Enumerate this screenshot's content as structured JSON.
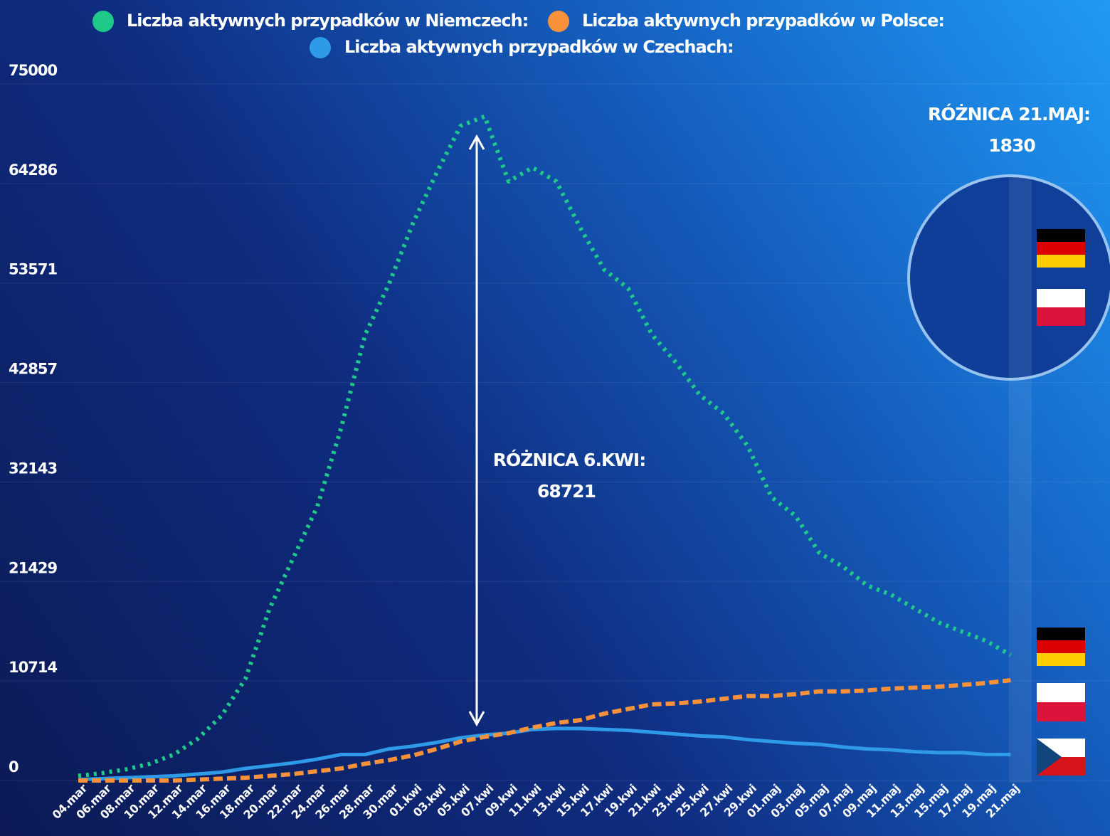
{
  "chart_data": {
    "type": "line",
    "categories": [
      "04.mar",
      "06.mar",
      "08.mar",
      "10.mar",
      "12.mar",
      "14.mar",
      "16.mar",
      "18.mar",
      "20.mar",
      "22.mar",
      "24.mar",
      "26.mar",
      "28.mar",
      "30.mar",
      "01.kwi",
      "03.kwi",
      "05.kwi",
      "07.kwi",
      "09.kwi",
      "11.kwi",
      "13.kwi",
      "15.kwi",
      "17.kwi",
      "19.kwi",
      "21.kwi",
      "23.kwi",
      "25.kwi",
      "27.kwi",
      "29.kwi",
      "01.maj",
      "03.maj",
      "05.maj",
      "07.maj",
      "09.maj",
      "11.maj",
      "13.maj",
      "15.maj",
      "17.maj",
      "19.maj",
      "21.maj"
    ],
    "series": [
      {
        "name": "Liczba aktywnych przypadków w Niemczech:",
        "color": "#1ec98a",
        "style": "dotted",
        "values": [
          500,
          800,
          1200,
          1800,
          2800,
          4500,
          7000,
          11000,
          18500,
          24000,
          29500,
          38000,
          48000,
          53500,
          60000,
          65500,
          70500,
          71500,
          64500,
          66000,
          64500,
          59500,
          55000,
          53000,
          48000,
          45000,
          41500,
          39500,
          36000,
          30500,
          28500,
          24500,
          23000,
          21000,
          20000,
          18500,
          17000,
          16000,
          15000,
          13500
        ]
      },
      {
        "name": "Liczba aktywnych przypadków w Polsce:",
        "color": "#f7913a",
        "style": "dashed",
        "values": [
          0,
          0,
          0,
          0,
          0,
          100,
          200,
          300,
          500,
          700,
          1000,
          1300,
          1800,
          2200,
          2700,
          3400,
          4200,
          4700,
          5100,
          5700,
          6200,
          6500,
          7200,
          7700,
          8200,
          8300,
          8500,
          8800,
          9100,
          9100,
          9300,
          9600,
          9600,
          9700,
          9900,
          10000,
          10100,
          10300,
          10500,
          10800
        ]
      },
      {
        "name": "Liczba aktywnych przypadków w Czechach:",
        "color": "#2f9ae8",
        "style": "solid",
        "values": [
          100,
          200,
          300,
          400,
          500,
          700,
          900,
          1300,
          1600,
          1900,
          2300,
          2800,
          2800,
          3400,
          3700,
          4100,
          4600,
          4900,
          5100,
          5500,
          5600,
          5600,
          5500,
          5400,
          5200,
          5000,
          4800,
          4700,
          4400,
          4200,
          4000,
          3900,
          3600,
          3400,
          3300,
          3100,
          3000,
          3000,
          2800,
          2800
        ]
      }
    ],
    "ylim": [
      0,
      75000
    ],
    "yticks": [
      0,
      10714,
      21429,
      32143,
      42857,
      53571,
      64286,
      75000
    ],
    "grid": true,
    "annotations": [
      {
        "label": "RÓŻNICA 6.KWI:",
        "value": 68721
      },
      {
        "label": "RÓŻNICA 21.MAJ:",
        "value": 1830
      }
    ]
  }
}
